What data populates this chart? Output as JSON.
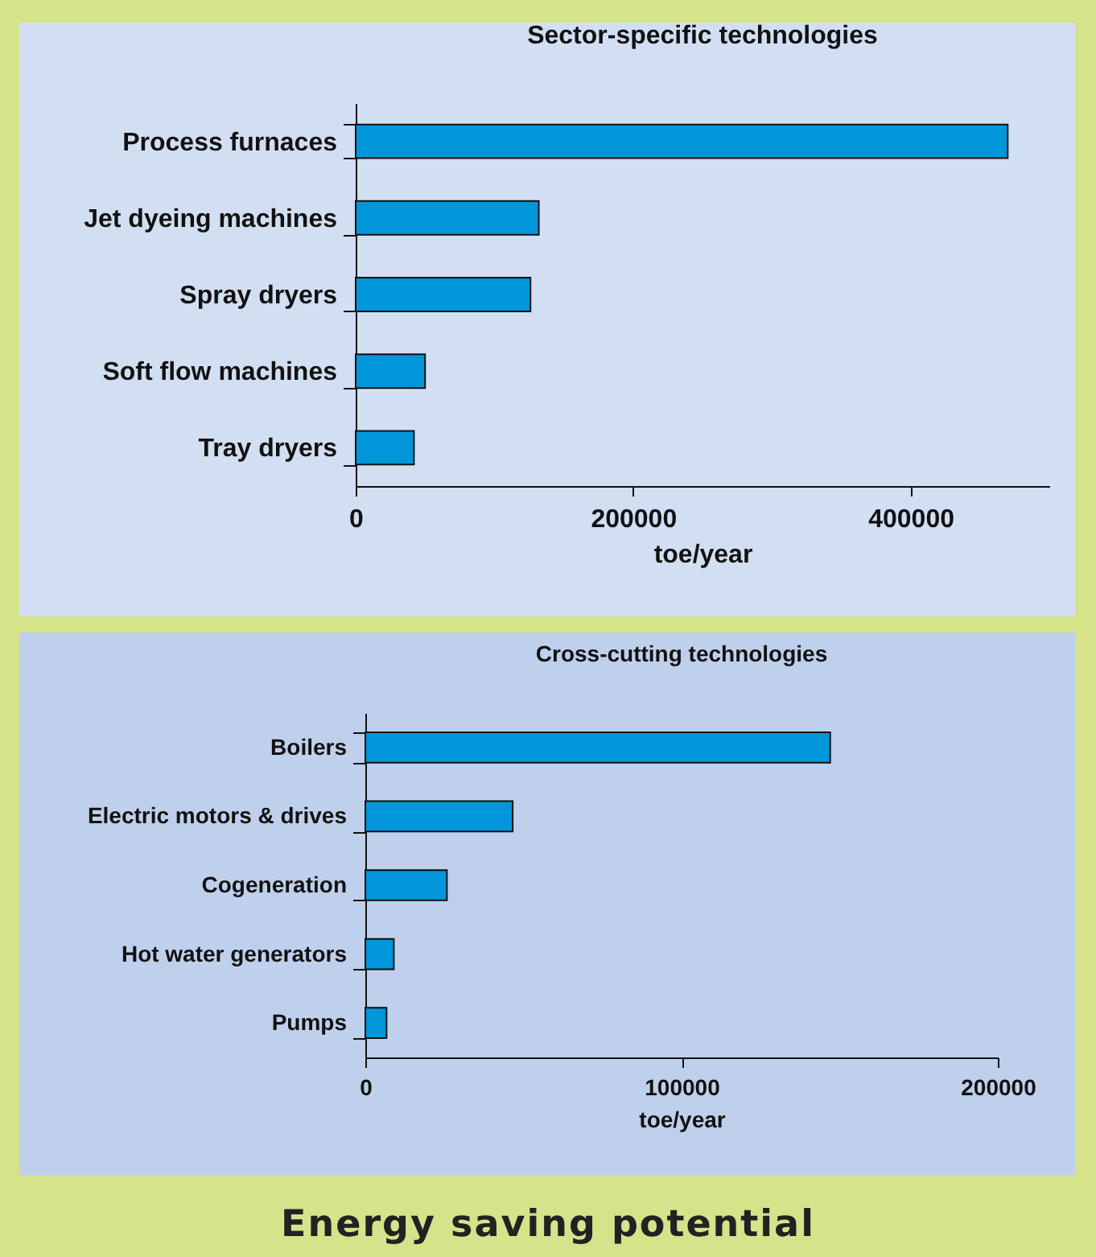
{
  "chart_data": [
    {
      "type": "bar",
      "orientation": "horizontal",
      "title": "Sector-specific technologies",
      "xlabel": "toe/year",
      "categories": [
        "Process furnaces",
        "Jet dyeing machines",
        "Spray dryers",
        "Soft flow machines",
        "Tray dryers"
      ],
      "values": [
        470000,
        132000,
        126000,
        50000,
        42000
      ],
      "color": "#0096d9",
      "xlim": [
        0,
        500000
      ],
      "xticks": [
        0,
        200000,
        400000
      ]
    },
    {
      "type": "bar",
      "orientation": "horizontal",
      "title": "Cross-cutting technologies",
      "xlabel": "toe/year",
      "categories": [
        "Boilers",
        "Electric motors & drives",
        "Cogeneration",
        "Hot water generators",
        "Pumps"
      ],
      "values": [
        147000,
        46600,
        25800,
        9000,
        6700
      ],
      "color": "#0096d9",
      "xlim": [
        0,
        200000
      ],
      "xticks": [
        0,
        100000,
        200000
      ],
      "annotations": [
        "Energy saving potential"
      ]
    }
  ]
}
